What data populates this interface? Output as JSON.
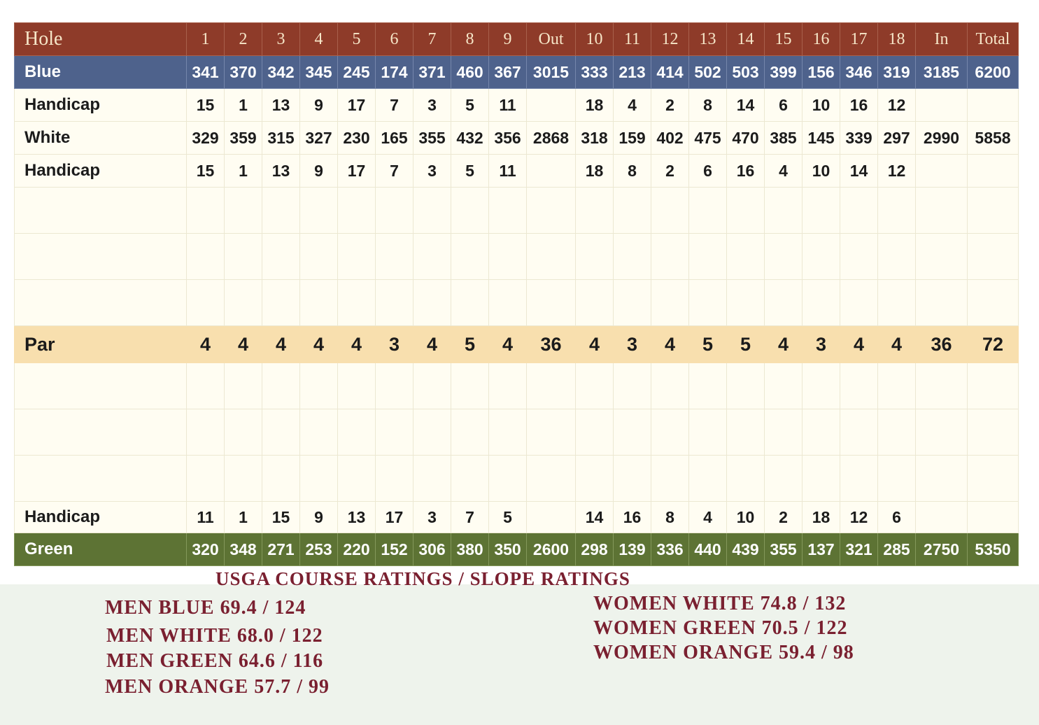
{
  "scorecard": {
    "header": [
      "Hole",
      "1",
      "2",
      "3",
      "4",
      "5",
      "6",
      "7",
      "8",
      "9",
      "Out",
      "10",
      "11",
      "12",
      "13",
      "14",
      "15",
      "16",
      "17",
      "18",
      "In",
      "Total"
    ],
    "blue": [
      "Blue",
      "341",
      "370",
      "342",
      "345",
      "245",
      "174",
      "371",
      "460",
      "367",
      "3015",
      "333",
      "213",
      "414",
      "502",
      "503",
      "399",
      "156",
      "346",
      "319",
      "3185",
      "6200"
    ],
    "handicap_men": [
      "Handicap",
      "15",
      "1",
      "13",
      "9",
      "17",
      "7",
      "3",
      "5",
      "11",
      "",
      "18",
      "4",
      "2",
      "8",
      "14",
      "6",
      "10",
      "16",
      "12",
      "",
      ""
    ],
    "white": [
      "White",
      "329",
      "359",
      "315",
      "327",
      "230",
      "165",
      "355",
      "432",
      "356",
      "2868",
      "318",
      "159",
      "402",
      "475",
      "470",
      "385",
      "145",
      "339",
      "297",
      "2990",
      "5858"
    ],
    "handicap_white": [
      "Handicap",
      "15",
      "1",
      "13",
      "9",
      "17",
      "7",
      "3",
      "5",
      "11",
      "",
      "18",
      "8",
      "2",
      "6",
      "16",
      "4",
      "10",
      "14",
      "12",
      "",
      ""
    ],
    "par": [
      "Par",
      "4",
      "4",
      "4",
      "4",
      "4",
      "3",
      "4",
      "5",
      "4",
      "36",
      "4",
      "3",
      "4",
      "5",
      "5",
      "4",
      "3",
      "4",
      "4",
      "36",
      "72"
    ],
    "handicap_women": [
      "Handicap",
      "11",
      "1",
      "15",
      "9",
      "13",
      "17",
      "3",
      "7",
      "5",
      "",
      "14",
      "16",
      "8",
      "4",
      "10",
      "2",
      "18",
      "12",
      "6",
      "",
      ""
    ],
    "green": [
      "Green",
      "320",
      "348",
      "271",
      "253",
      "220",
      "152",
      "306",
      "380",
      "350",
      "2600",
      "298",
      "139",
      "336",
      "440",
      "439",
      "355",
      "137",
      "321",
      "285",
      "2750",
      "5350"
    ]
  },
  "ratings": {
    "title": "USGA COURSE RATINGS / SLOPE RATINGS",
    "men": [
      "MEN BLUE 69.4 / 124",
      "MEN WHITE 68.0 / 122",
      "MEN GREEN 64.6 / 116",
      "MEN ORANGE 57.7 / 99"
    ],
    "women": [
      "WOMEN WHITE 74.8 / 132",
      "WOMEN GREEN 70.5 / 122",
      "WOMEN ORANGE 59.4 / 98"
    ]
  },
  "colors": {
    "header_bg": "#8e3b29",
    "blue_bg": "#4e628c",
    "par_bg": "#f8dfae",
    "green_bg": "#5d7334",
    "ratings_text": "#7a2030"
  }
}
